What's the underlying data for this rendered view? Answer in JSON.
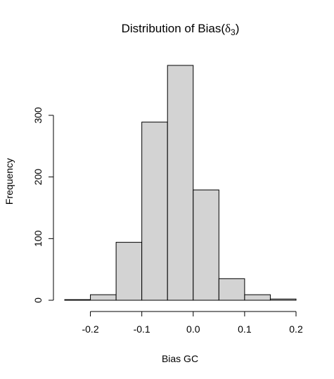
{
  "chart_data": {
    "type": "histogram",
    "title_main": "Distribution of Bias(",
    "title_symbol": "δ",
    "title_subscript": "3",
    "title_close": ")",
    "xlabel": "Bias GC",
    "ylabel": "Frequency",
    "bins": [
      {
        "start": -0.25,
        "end": -0.2,
        "count": 1
      },
      {
        "start": -0.2,
        "end": -0.15,
        "count": 9
      },
      {
        "start": -0.15,
        "end": -0.1,
        "count": 94
      },
      {
        "start": -0.1,
        "end": -0.05,
        "count": 289
      },
      {
        "start": -0.05,
        "end": 0.0,
        "count": 381
      },
      {
        "start": 0.0,
        "end": 0.05,
        "count": 179
      },
      {
        "start": 0.05,
        "end": 0.1,
        "count": 35
      },
      {
        "start": 0.1,
        "end": 0.15,
        "count": 9
      },
      {
        "start": 0.15,
        "end": 0.2,
        "count": 2
      }
    ],
    "xlim": [
      -0.25,
      0.2
    ],
    "ylim": [
      0,
      381
    ],
    "x_ticks": [
      -0.2,
      -0.1,
      0.0,
      0.1,
      0.2
    ],
    "x_tick_labels": [
      "-0.2",
      "-0.1",
      "0.0",
      "0.1",
      "0.2"
    ],
    "y_ticks": [
      0,
      100,
      200,
      300
    ],
    "y_tick_labels": [
      "0",
      "100",
      "200",
      "300"
    ],
    "bar_color": "#d3d3d3",
    "grid": false
  }
}
